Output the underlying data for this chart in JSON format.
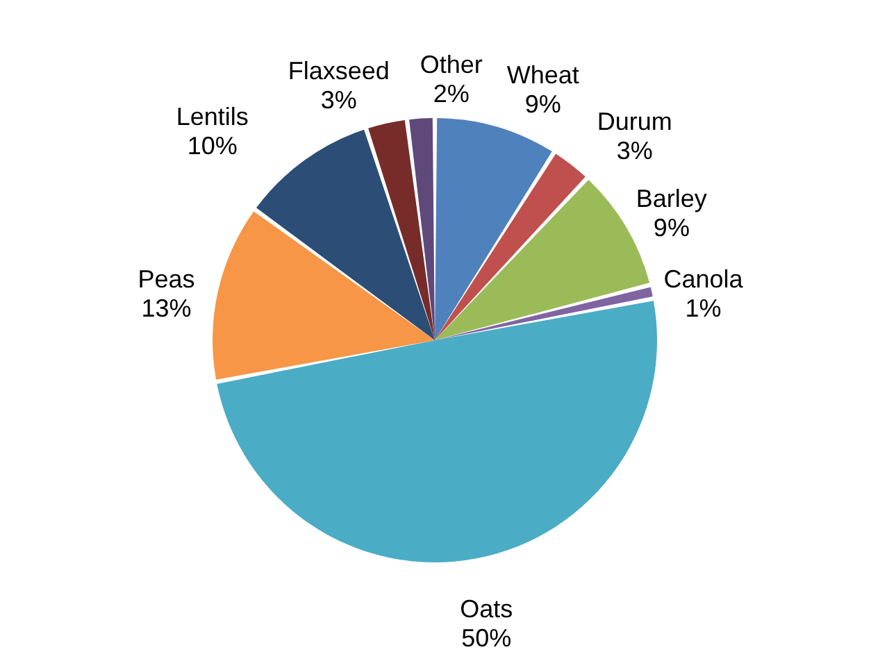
{
  "chart_data": {
    "type": "pie",
    "categories": [
      "Wheat",
      "Durum",
      "Barley",
      "Canola",
      "Oats",
      "Peas",
      "Lentils",
      "Flaxseed",
      "Other"
    ],
    "values": [
      9,
      3,
      9,
      1,
      50,
      13,
      10,
      3,
      2
    ],
    "value_labels": [
      "9%",
      "3%",
      "9%",
      "1%",
      "50%",
      "13%",
      "10%",
      "3%",
      "2%"
    ],
    "colors": [
      "#4f81bd",
      "#c0504d",
      "#9bbb59",
      "#8064a2",
      "#4bacc6",
      "#f79646",
      "#2c4d75",
      "#772c2a",
      "#5f497a"
    ]
  }
}
